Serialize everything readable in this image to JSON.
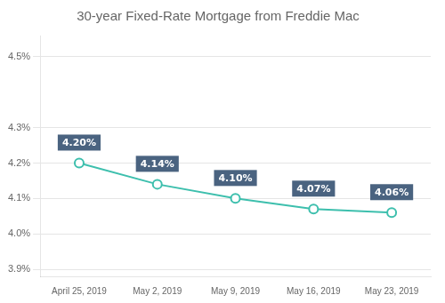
{
  "chart_data": {
    "type": "line",
    "title": "30-year Fixed-Rate Mortgage from Freddie Mac",
    "categories": [
      "April 25, 2019",
      "May 2, 2019",
      "May 9, 2019",
      "May 16, 2019",
      "May 23, 2019"
    ],
    "values": [
      4.2,
      4.14,
      4.1,
      4.07,
      4.06
    ],
    "value_labels": [
      "4.20%",
      "4.14%",
      "4.10%",
      "4.07%",
      "4.06%"
    ],
    "data_labels": true,
    "color": "#3dbfad",
    "marker": "circle",
    "ylim": [
      3.88,
      4.56
    ],
    "yticks": [
      {
        "value": 3.9,
        "label": "3.9%"
      },
      {
        "value": 4.0,
        "label": "4.0%"
      },
      {
        "value": 4.1,
        "label": "4.1%"
      },
      {
        "value": 4.2,
        "label": "4.2%"
      },
      {
        "value": 4.3,
        "label": "4.3%"
      },
      {
        "value": 4.5,
        "label": "4.5%"
      }
    ],
    "grid": true
  }
}
